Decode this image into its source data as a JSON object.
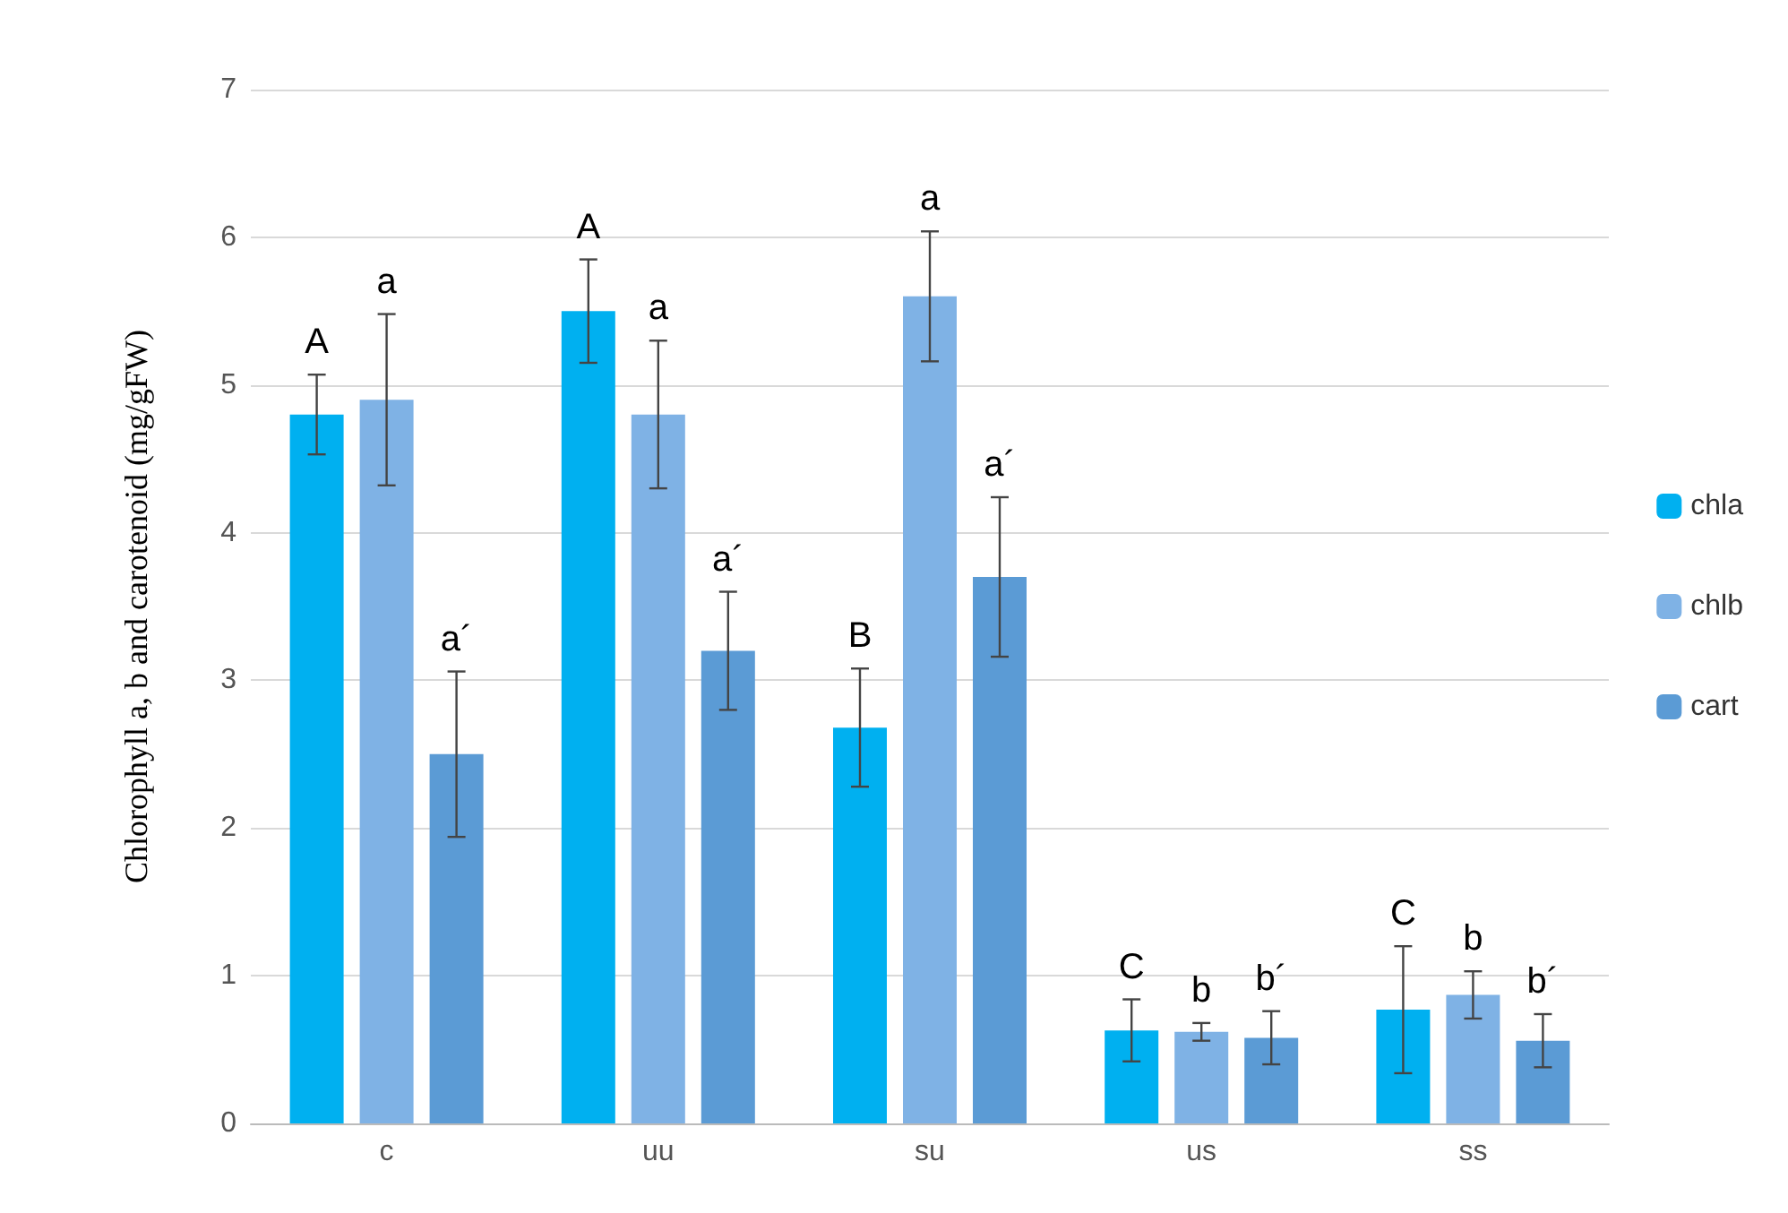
{
  "chart_data": {
    "type": "bar",
    "ylabel": "Chlorophyll a, b and carotenoid (mg/gFW)",
    "categories": [
      "c",
      "uu",
      "su",
      "us",
      "ss"
    ],
    "series": [
      {
        "name": "chla",
        "color": "#00b0f0",
        "values": [
          4.8,
          5.5,
          2.68,
          0.63,
          0.77
        ],
        "errors": [
          0.27,
          0.35,
          0.4,
          0.21,
          0.43
        ],
        "value_labels": [
          "A",
          "A",
          "B",
          "C",
          "C"
        ]
      },
      {
        "name": "chlb",
        "color": "#7fb2e5",
        "values": [
          4.9,
          4.8,
          5.6,
          0.62,
          0.87
        ],
        "errors": [
          0.58,
          0.5,
          0.44,
          0.06,
          0.16
        ],
        "value_labels": [
          "a",
          "a",
          "a",
          "b",
          "b"
        ]
      },
      {
        "name": "cart",
        "color": "#5b9bd5",
        "values": [
          2.5,
          3.2,
          3.7,
          0.58,
          0.56
        ],
        "errors": [
          0.56,
          0.4,
          0.54,
          0.18,
          0.18
        ],
        "value_labels": [
          "a´",
          "a´",
          "a´",
          "b´",
          "b´"
        ]
      }
    ],
    "ylim": [
      0,
      7
    ],
    "yticks": [
      0,
      1,
      2,
      3,
      4,
      5,
      6,
      7
    ],
    "grid": "y",
    "legend": "right"
  }
}
